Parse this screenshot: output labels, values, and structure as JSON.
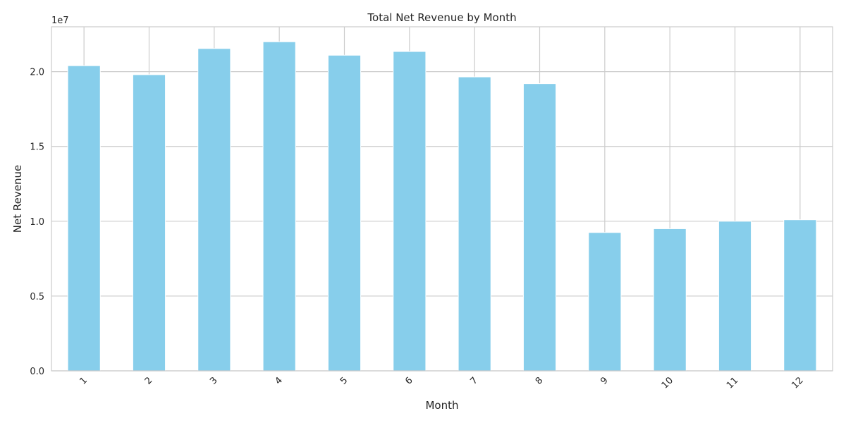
{
  "chart_data": {
    "type": "bar",
    "title": "Total Net Revenue by Month",
    "xlabel": "Month",
    "ylabel": "Net Revenue",
    "y_offset_label": "1e7",
    "categories": [
      "1",
      "2",
      "3",
      "4",
      "5",
      "6",
      "7",
      "8",
      "9",
      "10",
      "11",
      "12"
    ],
    "values": [
      20400000,
      19800000,
      21550000,
      22000000,
      21100000,
      21350000,
      19650000,
      19200000,
      9250000,
      9500000,
      10000000,
      10100000
    ],
    "ylim": [
      0,
      23000000
    ],
    "yticks": [
      0,
      5000000,
      10000000,
      15000000,
      20000000
    ],
    "ytick_labels": [
      "0.0",
      "0.5",
      "1.0",
      "1.5",
      "2.0"
    ],
    "grid": true,
    "bar_color": "#87CEEB",
    "grid_color": "#cccccc"
  }
}
